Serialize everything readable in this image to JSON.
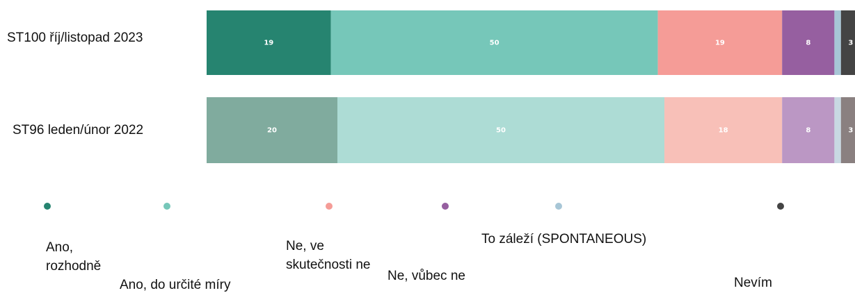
{
  "chart_data": {
    "type": "stacked-bar-horizontal",
    "categories": [
      "ST100 říj/listopad 2023",
      "ST96 leden/únor 2022"
    ],
    "series": [
      {
        "name": "Ano, rozhodně",
        "colors": [
          "#268470",
          "#80ab9e"
        ],
        "values": [
          19,
          20
        ]
      },
      {
        "name": "Ano, do určité míry",
        "colors": [
          "#76c7b9",
          "#addcd5"
        ],
        "values": [
          50,
          50
        ]
      },
      {
        "name": "Ne, ve skutečnosti ne",
        "colors": [
          "#f59c97",
          "#f8c0b8"
        ],
        "values": [
          19,
          18
        ]
      },
      {
        "name": "Ne, vůbec ne",
        "colors": [
          "#965fa0",
          "#bb97c4"
        ],
        "values": [
          8,
          8
        ]
      },
      {
        "name": "To záleží (SPONTANEOUS)",
        "colors": [
          "#a7c6d6",
          "#c8d8e2"
        ],
        "values": [
          1,
          1
        ]
      },
      {
        "name": "Nevím",
        "colors": [
          "#444444",
          "#8a8080"
        ],
        "values": [
          3,
          3
        ]
      }
    ],
    "xlim": [
      0,
      100
    ]
  }
}
